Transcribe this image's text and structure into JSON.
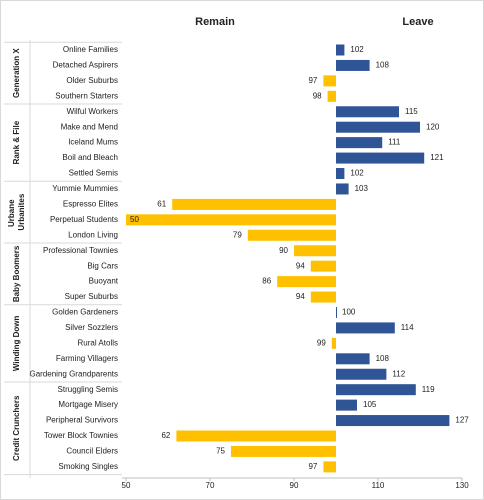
{
  "chart_data": {
    "type": "diverging-bar",
    "headers": [
      {
        "name": "Remain",
        "color": "#ffc000"
      },
      {
        "name": "Leave",
        "color": "#2f5597"
      }
    ],
    "baseline": 100,
    "groups": [
      {
        "name": "Generation X",
        "categories": [
          "Online Families",
          "Detached Aspirers",
          "Older Suburbs",
          "Southern Starters"
        ],
        "values": [
          102,
          108,
          97,
          98
        ]
      },
      {
        "name": "Rank & File",
        "categories": [
          "Wilful Workers",
          "Make and Mend",
          "Iceland Mums",
          "Boil and Bleach",
          "Settled Semis"
        ],
        "values": [
          115,
          120,
          111,
          121,
          102
        ]
      },
      {
        "name": "Urbane Urbanites",
        "categories": [
          "Yummie Mummies",
          "Espresso Elites",
          "Perpetual Students",
          "London Living"
        ],
        "values": [
          103,
          61,
          50,
          79
        ]
      },
      {
        "name": "Baby Boomers",
        "categories": [
          "Professional Townies",
          "Big Cars",
          "Buoyant",
          "Super Suburbs"
        ],
        "values": [
          90,
          94,
          86,
          94
        ]
      },
      {
        "name": "Winding Down",
        "categories": [
          "Golden Gardeners",
          "Silver Sozzlers",
          "Rural Atolls",
          "Farming Villagers",
          "Gardening Grandparents"
        ],
        "values": [
          100,
          114,
          99,
          108,
          112
        ]
      },
      {
        "name": "Credit Crunchers",
        "categories": [
          "Struggling Semis",
          "Mortgage Misery",
          "Peripheral Survivors",
          "Tower Block Townies",
          "Council Elders",
          "Smoking Singles"
        ],
        "values": [
          119,
          105,
          127,
          62,
          75,
          97
        ]
      }
    ],
    "xlim": [
      50,
      130
    ],
    "xticks": [
      50,
      70,
      90,
      110,
      130
    ]
  }
}
